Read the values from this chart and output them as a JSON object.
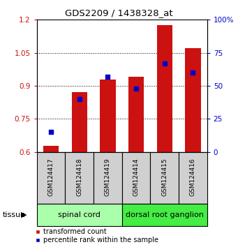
{
  "title": "GDS2209 / 1438328_at",
  "samples": [
    "GSM124417",
    "GSM124418",
    "GSM124419",
    "GSM124414",
    "GSM124415",
    "GSM124416"
  ],
  "transformed_count": [
    0.627,
    0.87,
    0.93,
    0.94,
    1.175,
    1.07
  ],
  "percentile_rank": [
    15,
    40,
    57,
    48,
    67,
    60
  ],
  "bar_bottom": 0.6,
  "ylim_left": [
    0.6,
    1.2
  ],
  "ylim_right": [
    0,
    100
  ],
  "yticks_left": [
    0.6,
    0.75,
    0.9,
    1.05,
    1.2
  ],
  "yticks_right": [
    0,
    25,
    50,
    75,
    100
  ],
  "ytick_labels_left": [
    "0.6",
    "0.75",
    "0.9",
    "1.05",
    "1.2"
  ],
  "ytick_labels_right": [
    "0",
    "25",
    "50",
    "75",
    "100%"
  ],
  "bar_color": "#cc1111",
  "dot_color": "#0000cc",
  "bar_width": 0.55,
  "tissue_groups": [
    {
      "label": "spinal cord",
      "start": 0,
      "end": 3,
      "color": "#aaffaa"
    },
    {
      "label": "dorsal root ganglion",
      "start": 3,
      "end": 6,
      "color": "#44ee44"
    }
  ],
  "tissue_label": "tissue",
  "legend_red": "transformed count",
  "legend_blue": "percentile rank within the sample",
  "sample_box_color": "#d0d0d0",
  "background_color": "#ffffff"
}
